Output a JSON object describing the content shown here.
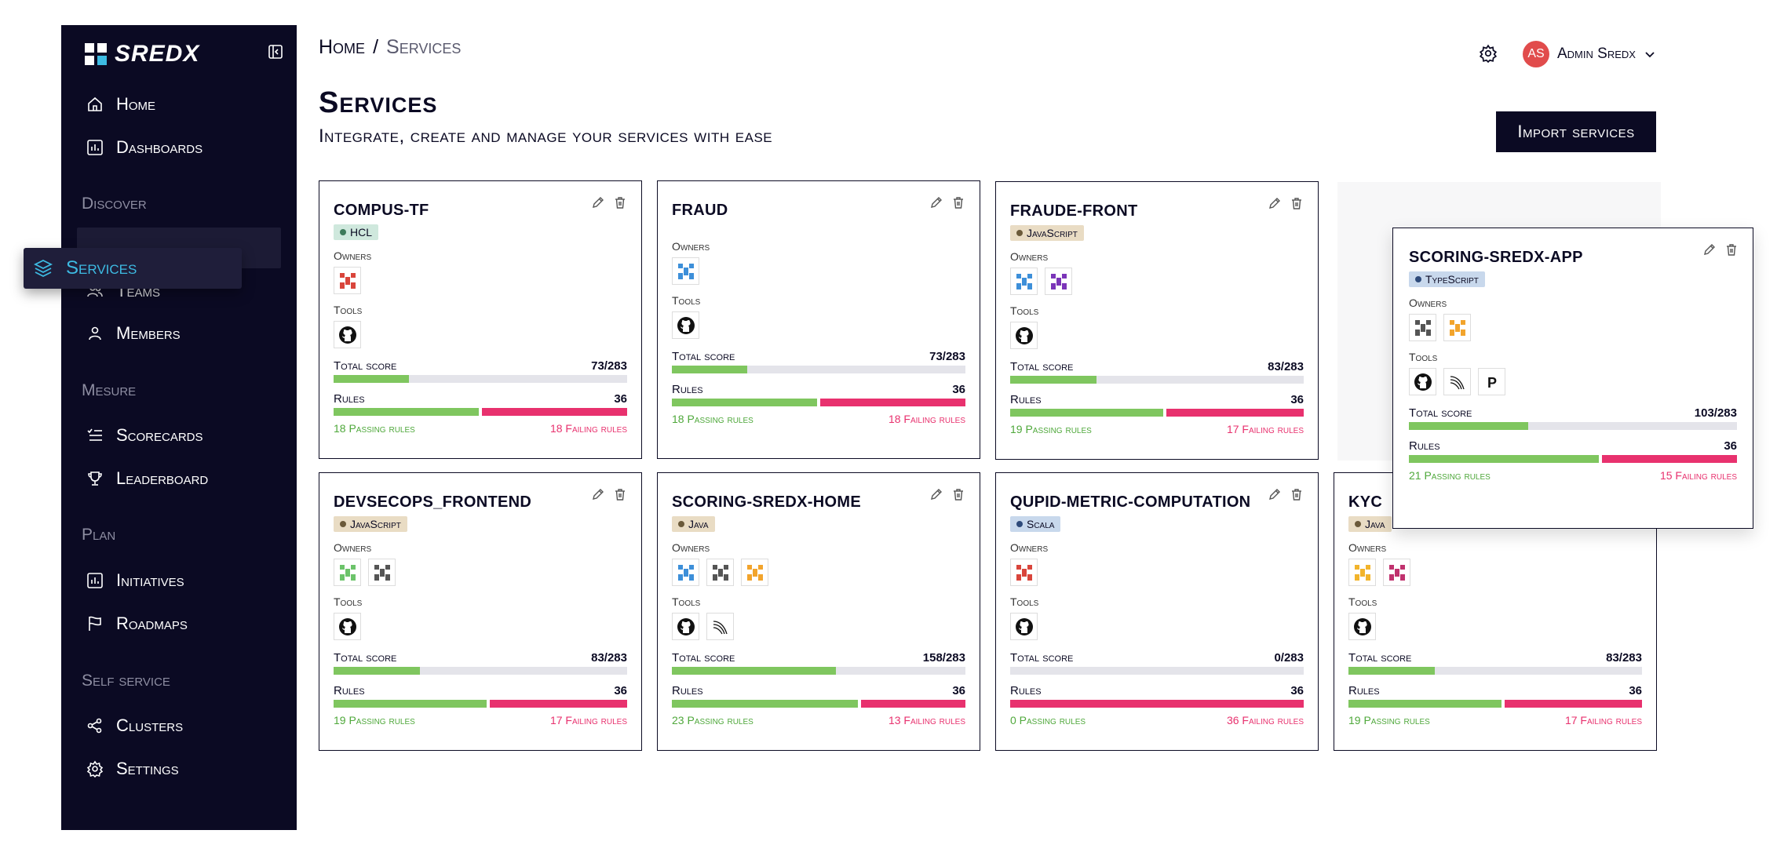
{
  "app": {
    "brand": "SREDX"
  },
  "sidebar": {
    "items": [
      {
        "label": "Home",
        "icon": "home-icon"
      },
      {
        "label": "Dashboards",
        "icon": "chart-icon"
      },
      {
        "label": "Teams",
        "icon": "users-icon"
      },
      {
        "label": "Members",
        "icon": "user-icon"
      },
      {
        "label": "Scorecards",
        "icon": "list-icon"
      },
      {
        "label": "Leaderboard",
        "icon": "trophy-icon"
      },
      {
        "label": "Initiatives",
        "icon": "chart-icon"
      },
      {
        "label": "Roadmaps",
        "icon": "flag-icon"
      },
      {
        "label": "Clusters",
        "icon": "share-icon"
      },
      {
        "label": "Settings",
        "icon": "gear-icon"
      }
    ],
    "sections": [
      "Discover",
      "Mesure",
      "Plan",
      "Self service"
    ],
    "dragging_item": {
      "label": "Services",
      "icon": "layers-icon"
    }
  },
  "header": {
    "breadcrumb": {
      "root": "Home",
      "separator": "/",
      "current": "Services"
    },
    "user": {
      "initials": "AS",
      "name": "Admin Sredx"
    }
  },
  "page": {
    "title": "Services",
    "subtitle": "Integrate, create and manage your services with ease",
    "import_label": "Import services"
  },
  "labels": {
    "owners": "Owners",
    "tools": "Tools",
    "total_score": "Total score",
    "rules": "Rules"
  },
  "cards": [
    {
      "name": "COMPUS-TF",
      "lang": "HCL",
      "owners": [
        "red"
      ],
      "tools": [
        "github"
      ],
      "score": "73/283",
      "score_ratio": 0.258,
      "rules": "36",
      "pass_ratio": 0.5,
      "passing": "18 Passing rules",
      "failing": "18 Failing rules"
    },
    {
      "name": "FRAUD",
      "lang": "",
      "owners": [
        "blue"
      ],
      "tools": [
        "github"
      ],
      "score": "73/283",
      "score_ratio": 0.258,
      "rules": "36",
      "pass_ratio": 0.5,
      "passing": "18 Passing rules",
      "failing": "18 Failing rules"
    },
    {
      "name": "FRAUDE-FRONT",
      "lang": "JavaScript",
      "owners": [
        "blue",
        "purple"
      ],
      "tools": [
        "github"
      ],
      "score": "83/283",
      "score_ratio": 0.293,
      "rules": "36",
      "pass_ratio": 0.528,
      "passing": "19 Passing rules",
      "failing": "17 Failing rules"
    },
    {
      "name": "SCORING-SREDX-APP",
      "lang": "TypeScript",
      "owners": [
        "gray",
        "orange"
      ],
      "tools": [
        "github",
        "curve",
        "p"
      ],
      "score": "103/283",
      "score_ratio": 0.364,
      "rules": "36",
      "pass_ratio": 0.583,
      "passing": "21 Passing rules",
      "failing": "15 Failing rules"
    },
    {
      "name": "DEVSECOPS_FRONTEND",
      "lang": "JavaScript",
      "owners": [
        "green",
        "gray"
      ],
      "tools": [
        "github"
      ],
      "score": "83/283",
      "score_ratio": 0.293,
      "rules": "36",
      "pass_ratio": 0.528,
      "passing": "19 Passing rules",
      "failing": "17 Failing rules"
    },
    {
      "name": "SCORING-SREDX-HOME",
      "lang": "Java",
      "owners": [
        "blue",
        "gray",
        "orange"
      ],
      "tools": [
        "github",
        "curve"
      ],
      "score": "158/283",
      "score_ratio": 0.558,
      "rules": "36",
      "pass_ratio": 0.639,
      "passing": "23 Passing rules",
      "failing": "13 Failing rules"
    },
    {
      "name": "QUPID-METRIC-COMPUTATION",
      "lang": "Scala",
      "owners": [
        "red2"
      ],
      "tools": [
        "github"
      ],
      "score": "0/283",
      "score_ratio": 0,
      "rules": "36",
      "pass_ratio": 0,
      "passing": "0 Passing rules",
      "failing": "36 Failing rules"
    },
    {
      "name": "KYC",
      "lang": "Java",
      "owners": [
        "yellow",
        "pink"
      ],
      "tools": [
        "github"
      ],
      "score": "83/283",
      "score_ratio": 0.293,
      "rules": "36",
      "pass_ratio": 0.528,
      "passing": "19 Passing rules",
      "failing": "17 Failing rules"
    }
  ],
  "colors": {
    "sidebar_bg": "#0b0a23",
    "accent": "#3dbbe3",
    "pass": "#7fc65f",
    "fail": "#e8316e",
    "badge_hcl": "#cfe8dd",
    "badge_js": "#e9dcc4",
    "badge_ts": "#c8d8ec",
    "badge_java": "#e9dcc4",
    "badge_scala": "#c8d8ec"
  }
}
